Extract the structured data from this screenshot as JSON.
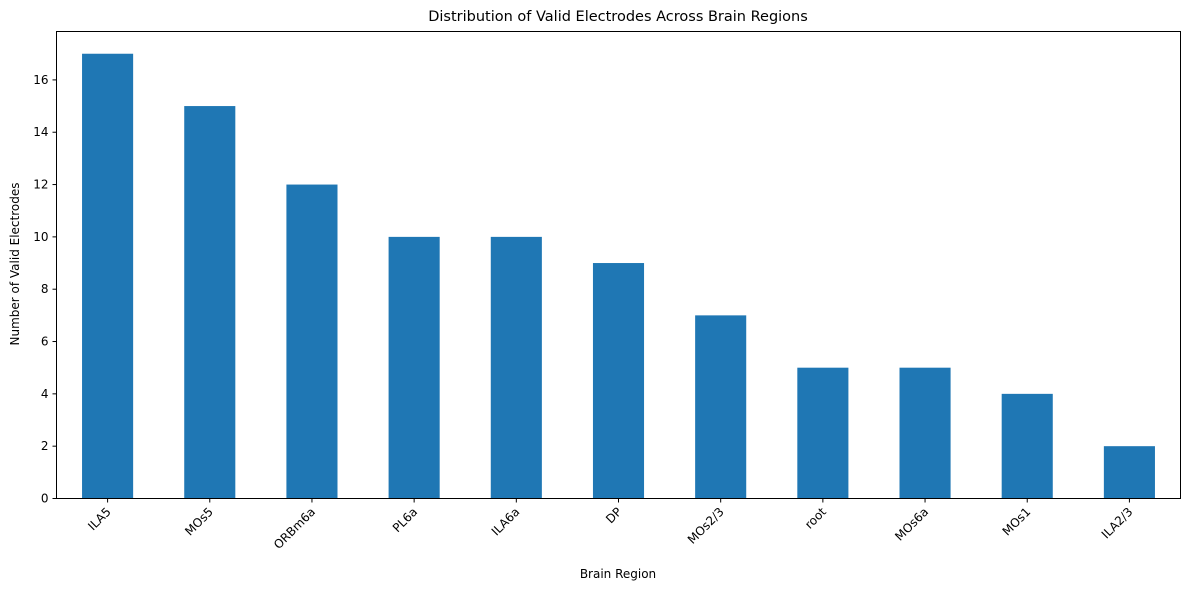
{
  "chart_data": {
    "type": "bar",
    "title": "Distribution of Valid Electrodes Across Brain Regions",
    "xlabel": "Brain Region",
    "ylabel": "Number of Valid Electrodes",
    "categories": [
      "ILA5",
      "MOs5",
      "ORBm6a",
      "PL6a",
      "ILA6a",
      "DP",
      "MOs2/3",
      "root",
      "MOs6a",
      "MOs1",
      "ILA2/3"
    ],
    "values": [
      17,
      15,
      12,
      10,
      10,
      9,
      7,
      5,
      5,
      4,
      2
    ],
    "ylim": [
      0,
      17.85
    ],
    "yticks": [
      0,
      2,
      4,
      6,
      8,
      10,
      12,
      14,
      16
    ],
    "grid": false,
    "bar_color": "#1f77b4",
    "tick_label_rotation": 45
  }
}
